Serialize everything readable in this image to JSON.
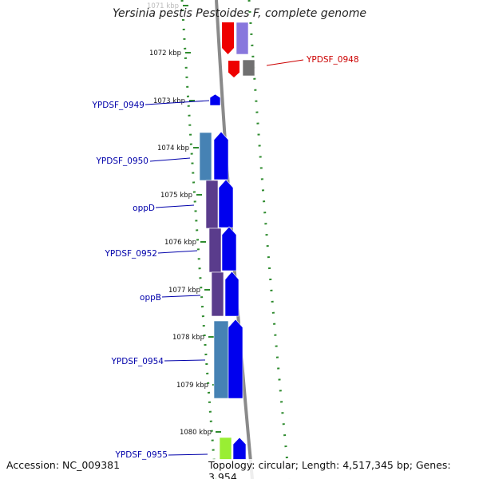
{
  "title": "Yersinia pestis Pestoides F, complete genome",
  "accession": "Accession: NC_009381",
  "summary": "Topology: circular; Length: 4,517,345 bp; Genes: 3,954",
  "colors": {
    "backbone": "#8a8a8a",
    "tick": "#2e8b2e",
    "forward_gene": "#0000ee",
    "steel_gene": "#4682b4",
    "purple_gene": "#5a3c8c",
    "red_gene": "#ee0000",
    "gray_gene": "#707070",
    "lime_gene": "#99ee33",
    "lavender_gene": "#8877dd",
    "label_blue": "#0000aa",
    "label_red": "#cc0000"
  },
  "kbp_ticks": [
    "1071 kbp",
    "1072 kbp",
    "1073 kbp",
    "1074 kbp",
    "1075 kbp",
    "1076 kbp",
    "1077 kbp",
    "1078 kbp",
    "1079 kbp",
    "1080 kbp"
  ],
  "gene_labels": [
    {
      "text": "YPDSF_0948",
      "color": "red"
    },
    {
      "text": "YPDSF_0949",
      "color": "blue"
    },
    {
      "text": "YPDSF_0950",
      "color": "blue"
    },
    {
      "text": "oppD",
      "color": "blue"
    },
    {
      "text": "YPDSF_0952",
      "color": "blue"
    },
    {
      "text": "oppB",
      "color": "blue"
    },
    {
      "text": "YPDSF_0954",
      "color": "blue"
    },
    {
      "text": "YPDSF_0955",
      "color": "blue"
    }
  ]
}
